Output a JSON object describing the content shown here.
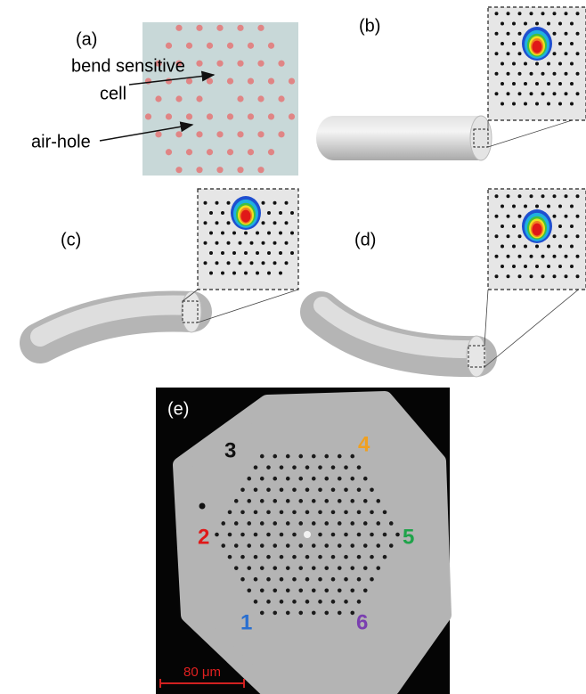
{
  "panel_a": {
    "label": "(a)",
    "annotations": [
      "bend sensitive",
      "cell",
      "air-hole"
    ]
  },
  "panel_b": {
    "label": "(b)"
  },
  "panel_c": {
    "label": "(c)"
  },
  "panel_d": {
    "label": "(d)"
  },
  "panel_e": {
    "label": "(e)",
    "core_labels": [
      "1",
      "2",
      "3",
      "4",
      "5",
      "6"
    ],
    "scale_bar": "80 μm"
  }
}
